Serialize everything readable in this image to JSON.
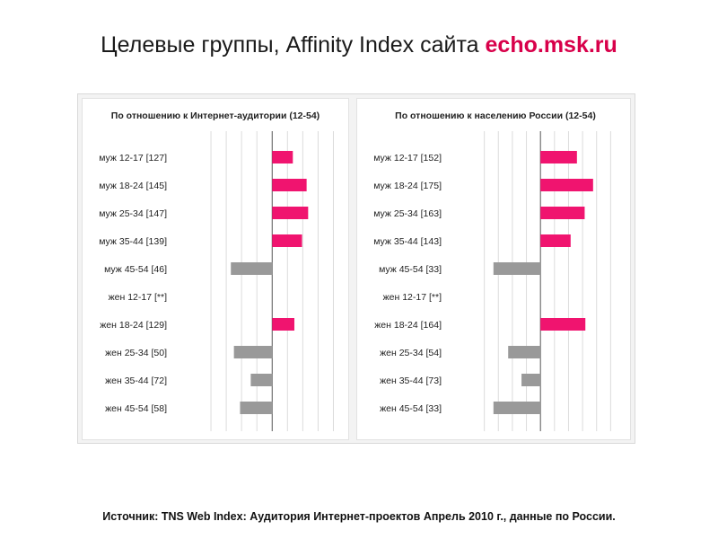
{
  "slide": {
    "title_main": "Целевые группы, Affinity Index сайта ",
    "title_site": "echo.msk.ru",
    "source": "Источник: TNS Web Index: Аудитория Интернет-проектов Апрель 2010 г., данные по России."
  },
  "colors": {
    "above_baseline": "#f0146f",
    "below_baseline": "#999999",
    "grid": "#dcdcdc",
    "axis": "#555555",
    "accent": "#d8004a"
  },
  "chart_data": [
    {
      "type": "bar",
      "orientation": "horizontal",
      "title": "По отношению к Интернет-аудитории (12-54)",
      "baseline": 100,
      "xlim": [
        0,
        190
      ],
      "grid": true,
      "categories": [
        "муж 12-17 [127]",
        "муж 18-24 [145]",
        "муж 25-34 [147]",
        "муж 35-44 [139]",
        "муж 45-54 [46]",
        "жен 12-17 [**]",
        "жен 18-24 [129]",
        "жен 25-34 [50]",
        "жен 35-44 [72]",
        "жен 45-54 [58]"
      ],
      "values": [
        127,
        145,
        147,
        139,
        46,
        null,
        129,
        50,
        72,
        58
      ]
    },
    {
      "type": "bar",
      "orientation": "horizontal",
      "title": "По отношению к населению России (12-54)",
      "baseline": 100,
      "xlim": [
        0,
        220
      ],
      "grid": true,
      "categories": [
        "муж 12-17 [152]",
        "муж 18-24 [175]",
        "муж 25-34 [163]",
        "муж 35-44 [143]",
        "муж 45-54 [33]",
        "жен 12-17 [**]",
        "жен 18-24 [164]",
        "жен 25-34 [54]",
        "жен 35-44 [73]",
        "жен 45-54 [33]"
      ],
      "values": [
        152,
        175,
        163,
        143,
        33,
        null,
        164,
        54,
        73,
        33
      ]
    }
  ]
}
